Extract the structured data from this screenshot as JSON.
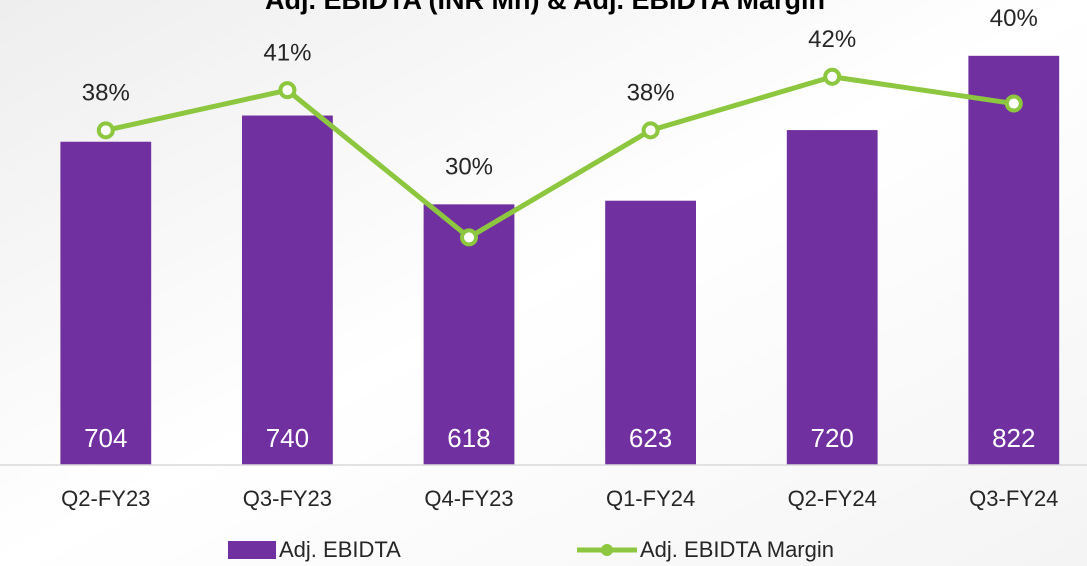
{
  "chart_data": {
    "type": "bar_line",
    "title": "Adj. EBIDTA (INR Mn) & Adj. EBIDTA Margin",
    "categories": [
      "Q2-FY23",
      "Q3-FY23",
      "Q4-FY23",
      "Q1-FY24",
      "Q2-FY24",
      "Q3-FY24"
    ],
    "ylim": [
      260,
      830
    ],
    "y2lim": [
      13,
      44
    ],
    "series": [
      {
        "name": "Adj. EBIDTA",
        "type": "bar",
        "color": "#7030a0",
        "values": [
          704,
          740,
          618,
          623,
          720,
          822
        ]
      },
      {
        "name": "Adj. EBIDTA Margin",
        "type": "line",
        "axis": "y2",
        "color": "#8dc63f",
        "values": [
          38,
          41,
          30,
          38,
          42,
          40
        ],
        "value_labels": [
          "38%",
          "41%",
          "30%",
          "38%",
          "42%",
          "40%"
        ]
      }
    ],
    "legend": "bottom"
  }
}
